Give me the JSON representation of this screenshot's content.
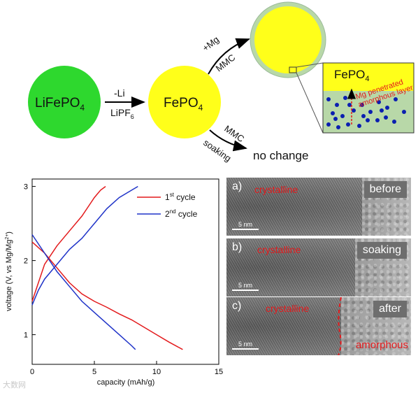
{
  "schematic": {
    "lifepo4": "LiFePO",
    "lifepo4_sub": "4",
    "minus_li": "-Li",
    "lipf": "LiPF",
    "lipf_sub": "6",
    "fepo4": "FePO",
    "fepo4_sub": "4",
    "plus_mg": "+Mg",
    "mmc_top": "MMC",
    "mmc_bottom": "MMC",
    "soaking": "soaking",
    "no_change": "no change",
    "inset_title": "FePO",
    "inset_title_sub": "4",
    "inset_layer_line1": "Mg penetrated",
    "inset_layer_line2": "amorphous layer",
    "colors": {
      "green": "#2ed82e",
      "yellow": "#ffff1a",
      "shell": "#b8d8a8",
      "dots": "#0b1fb0",
      "red_label": "#e31a1c"
    }
  },
  "chart_data": {
    "type": "line",
    "xlabel": "capacity (mAh/g)",
    "ylabel": "voltage (V, vs Mg/Mg",
    "ylabel_sup": "2+",
    "ylabel_end": ")",
    "xlim": [
      0,
      15
    ],
    "ylim": [
      0.6,
      3.1
    ],
    "xticks": [
      "0",
      "5",
      "10",
      "15"
    ],
    "yticks": [
      "1",
      "2",
      "3"
    ],
    "legend_position": "top-right",
    "series": [
      {
        "name": "1",
        "name_sup": "st",
        "name_suffix": " cycle",
        "color": "#e31a1c",
        "charge": [
          [
            0,
            1.45
          ],
          [
            0.5,
            1.7
          ],
          [
            1,
            1.95
          ],
          [
            2,
            2.2
          ],
          [
            3,
            2.4
          ],
          [
            4,
            2.6
          ],
          [
            5,
            2.85
          ],
          [
            5.5,
            2.95
          ],
          [
            5.9,
            3.0
          ]
        ],
        "discharge": [
          [
            0,
            2.25
          ],
          [
            1,
            2.1
          ],
          [
            2,
            1.9
          ],
          [
            3,
            1.7
          ],
          [
            4,
            1.55
          ],
          [
            5,
            1.45
          ],
          [
            6,
            1.37
          ],
          [
            7,
            1.28
          ],
          [
            8,
            1.2
          ],
          [
            9,
            1.1
          ],
          [
            10,
            1.0
          ],
          [
            11,
            0.9
          ],
          [
            12.1,
            0.8
          ]
        ]
      },
      {
        "name": "2",
        "name_sup": "nd",
        "name_suffix": " cycle",
        "color": "#1f33c8",
        "charge": [
          [
            0,
            1.4
          ],
          [
            0.5,
            1.6
          ],
          [
            1,
            1.75
          ],
          [
            2,
            1.95
          ],
          [
            3,
            2.15
          ],
          [
            4,
            2.3
          ],
          [
            5,
            2.5
          ],
          [
            6,
            2.7
          ],
          [
            7,
            2.85
          ],
          [
            8,
            2.95
          ],
          [
            8.5,
            3.0
          ]
        ],
        "discharge": [
          [
            0,
            2.35
          ],
          [
            1,
            2.1
          ],
          [
            2,
            1.85
          ],
          [
            3,
            1.65
          ],
          [
            4,
            1.45
          ],
          [
            5,
            1.3
          ],
          [
            6,
            1.15
          ],
          [
            7,
            1.0
          ],
          [
            8,
            0.85
          ],
          [
            8.3,
            0.8
          ]
        ]
      }
    ]
  },
  "tem": {
    "panels": [
      {
        "letter": "a)",
        "label": "crystalline",
        "tag": "before",
        "scale": "5 nm"
      },
      {
        "letter": "b)",
        "label": "crystalline",
        "tag": "soaking",
        "scale": "5 nm"
      },
      {
        "letter": "c)",
        "label": "crystalline",
        "tag": "after",
        "scale": "5 nm",
        "amorphous": "amorphous"
      }
    ]
  },
  "watermark": "大数网"
}
